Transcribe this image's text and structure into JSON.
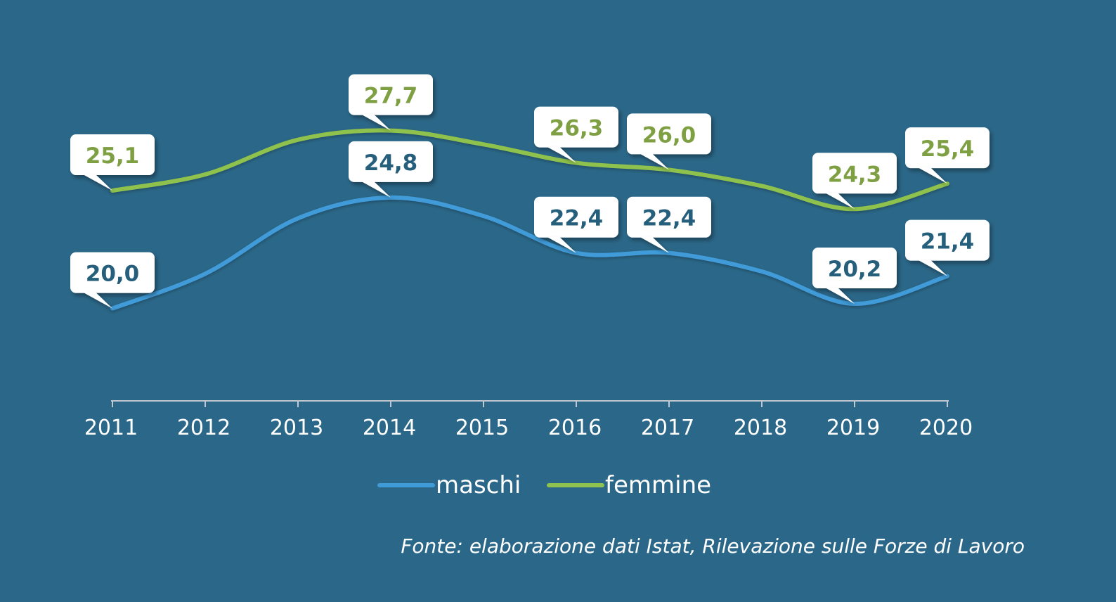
{
  "chart_data": {
    "type": "line",
    "categories": [
      "2011",
      "2012",
      "2013",
      "2014",
      "2015",
      "2016",
      "2017",
      "2018",
      "2019",
      "2020"
    ],
    "series": [
      {
        "name": "maschi",
        "values": [
          20.0,
          21.5,
          23.9,
          24.8,
          24.0,
          22.4,
          22.4,
          21.6,
          20.2,
          21.4
        ],
        "labels": [
          "20,0",
          "",
          "",
          "24,8",
          "",
          "22,4",
          "22,4",
          "",
          "20,2",
          "21,4"
        ],
        "color": "#3f9bd8"
      },
      {
        "name": "femmine",
        "values": [
          25.1,
          25.8,
          27.3,
          27.7,
          27.1,
          26.3,
          26.0,
          25.3,
          24.3,
          25.4
        ],
        "labels": [
          "25,1",
          "",
          "",
          "27,7",
          "",
          "26,3",
          "26,0",
          "",
          "24,3",
          "25,4"
        ],
        "color": "#8fc24e"
      }
    ],
    "label_text_colors": {
      "maschi": "#255f7c",
      "femmine": "#7ea043"
    },
    "ylim": [
      16,
      30
    ],
    "grid": false,
    "legend_position": "bottom",
    "axis_color": "#bfc8cf",
    "background": "#2b6788",
    "source": "Fonte: elaborazione dati Istat, Rilevazione sulle Forze di Lavoro"
  }
}
